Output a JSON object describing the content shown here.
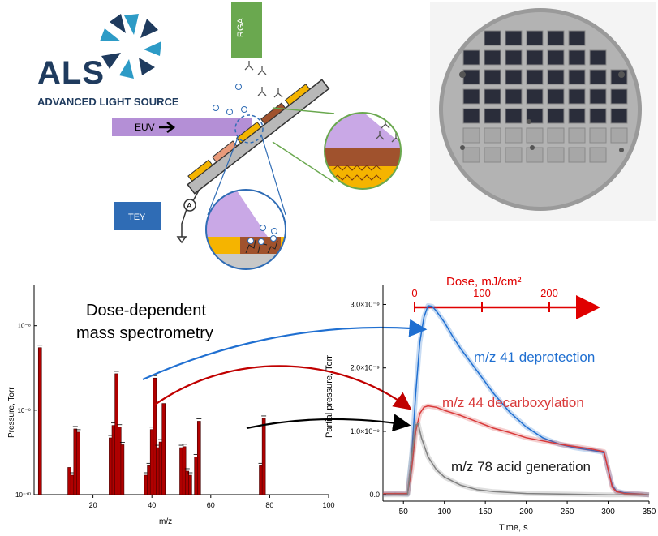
{
  "logo": {
    "name": "ALS",
    "subtitle": "ADVANCED LIGHT SOURCE",
    "colors": {
      "navy": "#1f3b5e",
      "teal": "#2d9bc6"
    }
  },
  "schematic": {
    "rga_label": "RGA",
    "euv_label": "EUV",
    "tey_label": "TEY",
    "ammeter_label": "A",
    "colors": {
      "rga_box": "#6aa84f",
      "tey_box": "#2f6cb5",
      "euv_beam": "#b48fd6",
      "resist": "#a0522d",
      "substrate": "#f5b400",
      "stage": "#b8b8b8"
    }
  },
  "photo": {
    "alt": "Sample wafer holder plate with grid of square windows"
  },
  "mass_spectrum": {
    "title_line1": "Dose-dependent",
    "title_line2": "mass spectrometry",
    "ylabel": "Pressure, Torr",
    "xlabel": "m/z",
    "ytick_labels": [
      "10⁻¹⁰",
      "10⁻⁹",
      "10⁻⁸"
    ],
    "xtick_labels": [
      "20",
      "40",
      "60",
      "80",
      "100"
    ],
    "bar_color": "#b00000"
  },
  "dose_axis": {
    "label": "Dose, mJ/cm²",
    "tick_labels": [
      "0",
      "100",
      "200"
    ],
    "color": "#e00000"
  },
  "time_plot": {
    "ylabel": "Partial pressure, Torr",
    "xlabel": "Time, s",
    "ytick_labels": [
      "0.0",
      "1.0×10⁻⁹",
      "2.0×10⁻⁹",
      "3.0×10⁻⁹"
    ],
    "xtick_labels": [
      "50",
      "100",
      "150",
      "200",
      "250",
      "300",
      "350"
    ],
    "series_labels": {
      "m41": "m/z 41 deprotection",
      "m44": "m/z 44 decarboxylation",
      "m78": "m/z 78 acid generation"
    },
    "colors": {
      "m41": "#1f6fd1",
      "m44": "#d93a3a",
      "m78": "#808080"
    }
  },
  "chart_data": [
    {
      "type": "bar",
      "title": "Dose-dependent mass spectrometry",
      "xlabel": "m/z",
      "ylabel": "Pressure, Torr",
      "yscale": "log",
      "xlim": [
        0,
        100
      ],
      "ylim": [
        1e-10,
        3e-08
      ],
      "x": [
        2,
        12,
        13,
        14,
        15,
        26,
        27,
        28,
        29,
        30,
        38,
        39,
        40,
        41,
        42,
        43,
        44,
        50,
        51,
        52,
        53,
        55,
        56,
        77,
        78
      ],
      "values": [
        5.5e-09,
        2.1e-10,
        1.7e-10,
        6e-10,
        5.5e-10,
        4.7e-10,
        6.6e-10,
        2.7e-09,
        6.3e-10,
        3.9e-10,
        1.7e-10,
        2.2e-10,
        5.9e-10,
        2.4e-09,
        3.6e-10,
        4.2e-10,
        1.2e-09,
        3.6e-10,
        3.7e-10,
        1.9e-10,
        1.7e-10,
        2.8e-10,
        7.4e-10,
        2.2e-10,
        8e-10
      ]
    },
    {
      "type": "line",
      "xlabel": "Time, s",
      "ylabel": "Partial pressure, Torr",
      "xlim": [
        25,
        350
      ],
      "ylim": [
        -1e-10,
        3.3e-09
      ],
      "series": [
        {
          "name": "m/z 41 deprotection",
          "x": [
            25,
            40,
            55,
            60,
            65,
            70,
            75,
            80,
            85,
            90,
            100,
            110,
            120,
            140,
            160,
            180,
            200,
            220,
            240,
            260,
            280,
            290,
            295,
            300,
            305,
            310,
            320,
            340,
            350
          ],
          "values": [
            1e-11,
            2e-11,
            1e-11,
            6e-10,
            1.6e-09,
            2.4e-09,
            2.8e-09,
            2.98e-09,
            2.97e-09,
            2.9e-09,
            2.72e-09,
            2.5e-09,
            2.3e-09,
            1.95e-09,
            1.6e-09,
            1.3e-09,
            1.07e-09,
            9e-10,
            8e-10,
            7.4e-10,
            7e-10,
            6.8e-10,
            6.6e-10,
            4e-10,
            1.5e-10,
            6e-11,
            3e-11,
            1e-11,
            0.0
          ]
        },
        {
          "name": "m/z 44 decarboxylation",
          "x": [
            25,
            40,
            55,
            60,
            65,
            70,
            75,
            80,
            90,
            100,
            120,
            140,
            160,
            180,
            200,
            220,
            240,
            260,
            280,
            295,
            300,
            305,
            310,
            320,
            340,
            350
          ],
          "values": [
            2e-11,
            2e-11,
            2e-11,
            4e-10,
            1e-09,
            1.28e-09,
            1.38e-09,
            1.4e-09,
            1.38e-09,
            1.33e-09,
            1.25e-09,
            1.15e-09,
            1.05e-09,
            9.8e-10,
            9e-10,
            8.5e-10,
            8e-10,
            7.6e-10,
            7.2e-10,
            6.8e-10,
            4e-10,
            1.2e-10,
            5e-11,
            2e-11,
            1e-11,
            0.0
          ]
        },
        {
          "name": "m/z 78 acid generation",
          "x": [
            25,
            40,
            55,
            60,
            65,
            68,
            72,
            80,
            90,
            100,
            120,
            140,
            160,
            200,
            250,
            300,
            350
          ],
          "values": [
            0.0,
            0.0,
            0.0,
            6e-10,
            1.1e-09,
            1.12e-09,
            9e-10,
            6e-10,
            4e-10,
            2.8e-10,
            1.5e-10,
            8e-11,
            5e-11,
            2e-11,
            1e-11,
            0.0,
            0.0
          ]
        }
      ]
    }
  ]
}
